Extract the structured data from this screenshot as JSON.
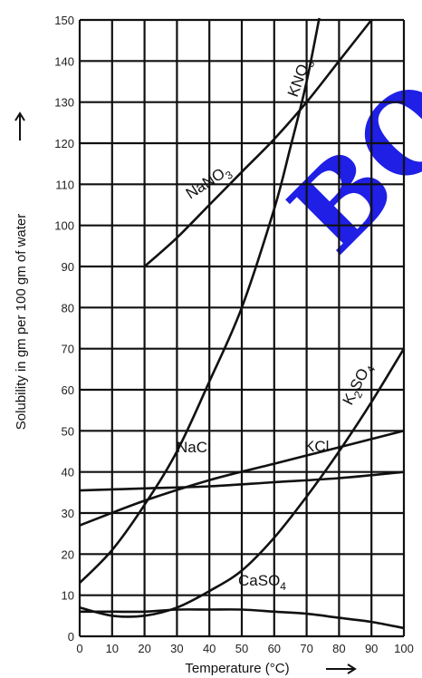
{
  "chart_data": {
    "type": "line",
    "xlabel": "Temperature (°C)",
    "ylabel": "Solubility in gm per 100 gm of water",
    "xlim": [
      0,
      100
    ],
    "ylim": [
      0,
      150
    ],
    "xticks": [
      0,
      10,
      20,
      30,
      40,
      50,
      60,
      70,
      80,
      90,
      100
    ],
    "yticks": [
      0,
      10,
      20,
      30,
      40,
      50,
      60,
      70,
      80,
      90,
      100,
      110,
      120,
      130,
      140,
      150
    ],
    "grid": true,
    "series": [
      {
        "name": "NaNO3",
        "label_base": "NaNO",
        "label_sub": "3",
        "label_tail": "",
        "x": [
          20,
          30,
          40,
          50,
          60,
          70,
          80,
          90
        ],
        "y": [
          90,
          97,
          105,
          113,
          121,
          130,
          140,
          150
        ]
      },
      {
        "name": "KNO3",
        "label_base": "KNO",
        "label_sub": "3",
        "label_tail": "",
        "x": [
          0,
          10,
          20,
          30,
          40,
          50,
          60,
          65,
          70,
          75
        ],
        "y": [
          13,
          21,
          32,
          45,
          62,
          80,
          104,
          119,
          135,
          155
        ]
      },
      {
        "name": "K2SO4",
        "label_base": "K",
        "label_sub": "2",
        "label_tail": "SO",
        "label_sub2": "4",
        "x": [
          0,
          10,
          20,
          30,
          40,
          50,
          60,
          70,
          80,
          90,
          100
        ],
        "y": [
          7,
          5,
          5,
          7,
          11,
          16,
          24,
          34,
          45,
          57,
          70
        ]
      },
      {
        "name": "KCl",
        "label_base": "KCl",
        "x": [
          0,
          20,
          40,
          60,
          80,
          100
        ],
        "y": [
          27,
          33,
          38,
          42,
          46,
          50
        ]
      },
      {
        "name": "NaCl",
        "label_base": "NaCl",
        "x": [
          0,
          20,
          40,
          60,
          80,
          100
        ],
        "y": [
          35.5,
          36,
          36.5,
          37.5,
          38.5,
          40
        ]
      },
      {
        "name": "CaSO4",
        "label_base": "CaSO",
        "label_sub": "4",
        "x": [
          0,
          10,
          20,
          30,
          40,
          50,
          60,
          70,
          80,
          90,
          100
        ],
        "y": [
          6,
          6,
          6,
          6.5,
          6.5,
          6.5,
          6,
          5.5,
          4.5,
          3.5,
          2
        ]
      }
    ]
  },
  "watermark": "BO"
}
